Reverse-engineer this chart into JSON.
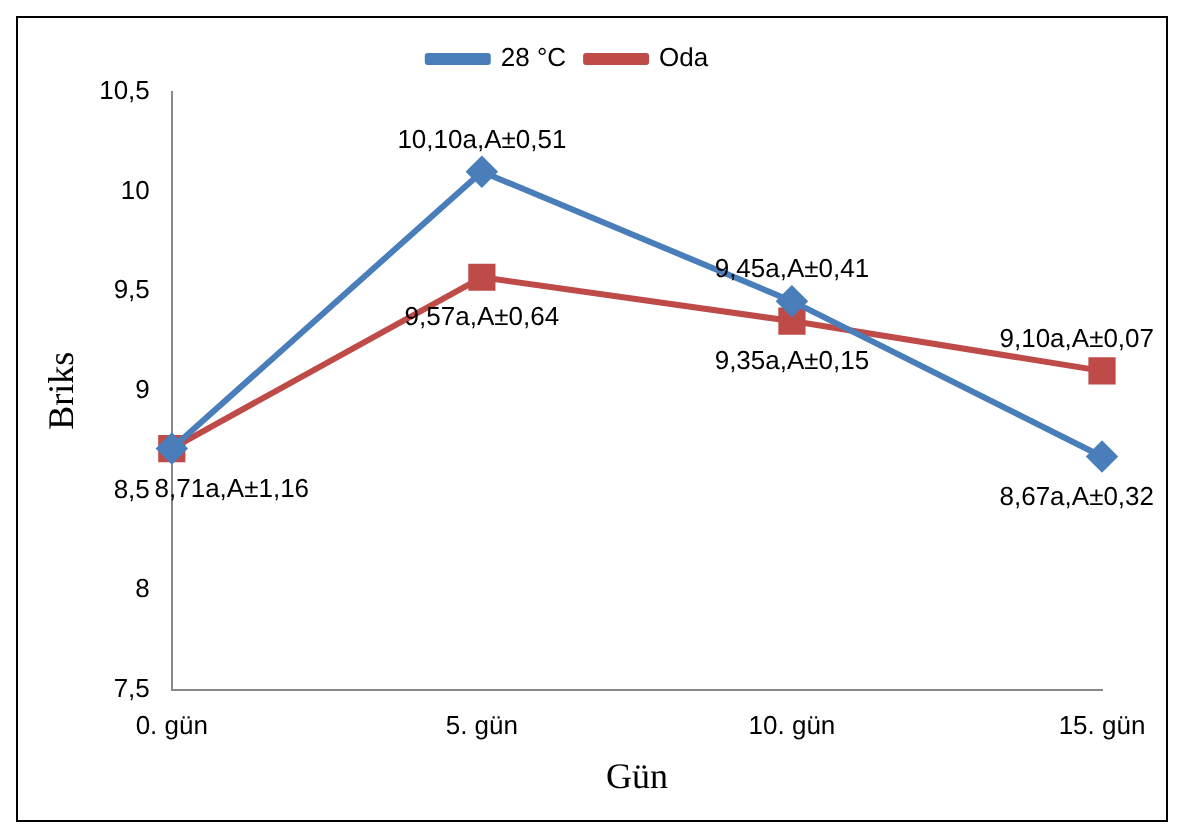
{
  "chart_data": {
    "type": "line",
    "xlabel": "Gün",
    "ylabel": "Briks",
    "categories": [
      "0. gün",
      "5. gün",
      "10. gün",
      "15. gün"
    ],
    "series": [
      {
        "name": "28 °C",
        "color": "#4a7ebb",
        "marker": "diamond",
        "values": [
          8.71,
          10.1,
          9.45,
          8.67
        ],
        "value_labels": [
          "8,71a,A±1,16",
          "10,10a,A±0,51",
          "9,45a,A±0,41",
          "8,67a,A±0,32"
        ]
      },
      {
        "name": "Oda",
        "color": "#be4b48",
        "marker": "square",
        "values": [
          8.71,
          9.57,
          9.35,
          9.1
        ],
        "value_labels": [
          null,
          "9,57a,A±0,64",
          "9,35a,A±0,15",
          "9,10a,A±0,07"
        ]
      }
    ],
    "ylim": [
      7.5,
      10.5
    ],
    "yticks": [
      {
        "value": 7.5,
        "label": "7,5"
      },
      8,
      {
        "value": 8.5,
        "label": "8,5"
      },
      9,
      {
        "value": 9.5,
        "label": "9,5"
      },
      10,
      {
        "value": 10.5,
        "label": "10,5"
      }
    ],
    "grid": false,
    "legend": "top",
    "line_style": "solid"
  }
}
